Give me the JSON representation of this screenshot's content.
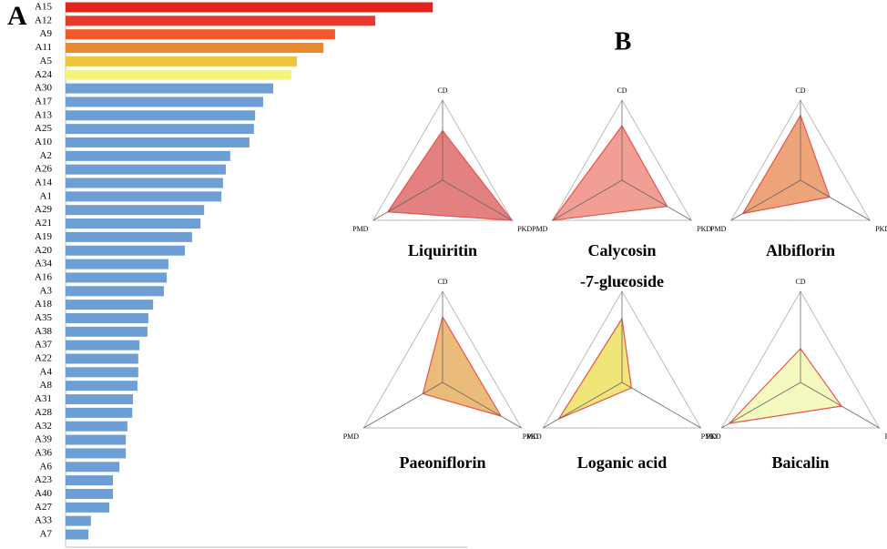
{
  "chart_data": [
    {
      "type": "bar",
      "panel_label": "A",
      "categories": [
        "A15",
        "A12",
        "A9",
        "A11",
        "A5",
        "A24",
        "A30",
        "A17",
        "A13",
        "A25",
        "A10",
        "A2",
        "A26",
        "A14",
        "A1",
        "A29",
        "A21",
        "A19",
        "A20",
        "A34",
        "A16",
        "A3",
        "A18",
        "A35",
        "A38",
        "A37",
        "A22",
        "A4",
        "A8",
        "A31",
        "A28",
        "A32",
        "A39",
        "A36",
        "A6",
        "A23",
        "A40",
        "A27",
        "A33",
        "A7"
      ],
      "values": [
        91.4,
        77.1,
        67.1,
        64.2,
        57.6,
        56.2,
        51.7,
        49.2,
        47.2,
        46.9,
        45.8,
        41.0,
        39.9,
        39.2,
        38.8,
        34.5,
        33.6,
        31.5,
        29.7,
        25.6,
        25.2,
        24.5,
        21.8,
        20.6,
        20.4,
        18.4,
        18.1,
        18.1,
        17.9,
        16.8,
        16.6,
        15.4,
        15.0,
        15.0,
        13.4,
        11.8,
        11.8,
        10.9,
        6.3,
        5.7
      ],
      "colors": [
        "#e0251f",
        "#e8392a",
        "#f05a28",
        "#e8892f",
        "#efc63a",
        "#f2f57a",
        "#6d9ed4",
        "#6d9ed4",
        "#6d9ed4",
        "#6d9ed4",
        "#6d9ed4",
        "#6d9ed4",
        "#6d9ed4",
        "#6d9ed4",
        "#6d9ed4",
        "#6d9ed4",
        "#6d9ed4",
        "#6d9ed4",
        "#6d9ed4",
        "#6d9ed4",
        "#6d9ed4",
        "#6d9ed4",
        "#6d9ed4",
        "#6d9ed4",
        "#6d9ed4",
        "#6d9ed4",
        "#6d9ed4",
        "#6d9ed4",
        "#6d9ed4",
        "#6d9ed4",
        "#6d9ed4",
        "#6d9ed4",
        "#6d9ed4",
        "#6d9ed4",
        "#6d9ed4",
        "#6d9ed4",
        "#6d9ed4",
        "#6d9ed4",
        "#6d9ed4",
        "#6d9ed4"
      ],
      "xlim": [
        0,
        100
      ]
    },
    {
      "type": "radar",
      "panel_label": "B",
      "axes": [
        "CD",
        "PMD",
        "PKD"
      ],
      "rlim": [
        0,
        1
      ],
      "series": [
        {
          "name": "Liquiritin",
          "color": "#e07272",
          "values": [
            0.62,
            0.79,
            1.0
          ]
        },
        {
          "name": "Calycosin\n-7-glucoside",
          "color": "#f0958a",
          "values": [
            0.68,
            1.0,
            0.65
          ]
        },
        {
          "name": "Albiflorin",
          "color": "#eb9a6a",
          "values": [
            0.81,
            0.83,
            0.42
          ]
        },
        {
          "name": "Paeoniflorin",
          "color": "#e8b46a",
          "values": [
            0.72,
            0.25,
            0.74
          ]
        },
        {
          "name": "Loganic acid",
          "color": "#ede26a",
          "values": [
            0.7,
            0.8,
            0.12
          ]
        },
        {
          "name": "Baicalin",
          "color": "#f3f9b8",
          "values": [
            0.37,
            0.9,
            0.52
          ]
        }
      ]
    }
  ]
}
